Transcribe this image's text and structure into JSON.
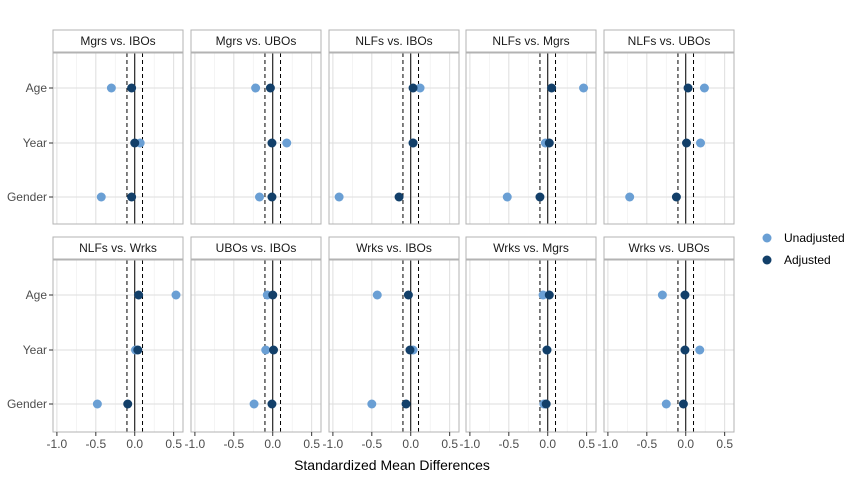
{
  "chart_data": {
    "type": "scatter",
    "xlabel": "Standardized Mean Differences",
    "ylabel": "",
    "xlim": [
      -1.05,
      0.62
    ],
    "x_ticks": [
      -1.0,
      -0.5,
      0.0,
      0.5
    ],
    "x_tick_labels": [
      "-1.0",
      "-0.5",
      "0.0",
      "0.5"
    ],
    "categories": [
      "Age",
      "Year",
      "Gender"
    ],
    "reference_lines": {
      "solid": 0,
      "dashed": [
        -0.1,
        0.1
      ]
    },
    "grid": true,
    "legend_position": "right",
    "colors": {
      "Unadjusted": "#6a9fd4",
      "Adjusted": "#123f69"
    },
    "legend": [
      "Unadjusted",
      "Adjusted"
    ],
    "panels": [
      {
        "title": "Mgrs vs. IBOs",
        "series": [
          {
            "name": "Unadjusted",
            "values": {
              "Age": -0.3,
              "Year": 0.07,
              "Gender": -0.43
            }
          },
          {
            "name": "Adjusted",
            "values": {
              "Age": -0.04,
              "Year": 0.0,
              "Gender": -0.04
            }
          }
        ]
      },
      {
        "title": "Mgrs vs. UBOs",
        "series": [
          {
            "name": "Unadjusted",
            "values": {
              "Age": -0.22,
              "Year": 0.18,
              "Gender": -0.17
            }
          },
          {
            "name": "Adjusted",
            "values": {
              "Age": -0.03,
              "Year": -0.01,
              "Gender": -0.01
            }
          }
        ]
      },
      {
        "title": "NLFs vs. IBOs",
        "series": [
          {
            "name": "Unadjusted",
            "values": {
              "Age": 0.12,
              "Year": 0.03,
              "Gender": -0.92
            }
          },
          {
            "name": "Adjusted",
            "values": {
              "Age": 0.03,
              "Year": 0.03,
              "Gender": -0.15
            }
          }
        ]
      },
      {
        "title": "NLFs vs. Mgrs",
        "series": [
          {
            "name": "Unadjusted",
            "values": {
              "Age": 0.46,
              "Year": -0.03,
              "Gender": -0.52
            }
          },
          {
            "name": "Adjusted",
            "values": {
              "Age": 0.05,
              "Year": 0.02,
              "Gender": -0.1
            }
          }
        ]
      },
      {
        "title": "NLFs vs. UBOs",
        "series": [
          {
            "name": "Unadjusted",
            "values": {
              "Age": 0.24,
              "Year": 0.19,
              "Gender": -0.72
            }
          },
          {
            "name": "Adjusted",
            "values": {
              "Age": 0.03,
              "Year": 0.01,
              "Gender": -0.12
            }
          }
        ]
      },
      {
        "title": "NLFs vs. Wrks",
        "series": [
          {
            "name": "Unadjusted",
            "values": {
              "Age": 0.53,
              "Year": 0.01,
              "Gender": -0.48
            }
          },
          {
            "name": "Adjusted",
            "values": {
              "Age": 0.05,
              "Year": 0.04,
              "Gender": -0.09
            }
          }
        ]
      },
      {
        "title": "UBOs vs. IBOs",
        "series": [
          {
            "name": "Unadjusted",
            "values": {
              "Age": -0.07,
              "Year": -0.09,
              "Gender": -0.24
            }
          },
          {
            "name": "Adjusted",
            "values": {
              "Age": 0.0,
              "Year": 0.01,
              "Gender": -0.01
            }
          }
        ]
      },
      {
        "title": "Wrks vs. IBOs",
        "series": [
          {
            "name": "Unadjusted",
            "values": {
              "Age": -0.43,
              "Year": 0.03,
              "Gender": -0.5
            }
          },
          {
            "name": "Adjusted",
            "values": {
              "Age": -0.03,
              "Year": -0.01,
              "Gender": -0.06
            }
          }
        ]
      },
      {
        "title": "Wrks vs. Mgrs",
        "series": [
          {
            "name": "Unadjusted",
            "values": {
              "Age": -0.06,
              "Year": -0.01,
              "Gender": -0.05
            }
          },
          {
            "name": "Adjusted",
            "values": {
              "Age": 0.02,
              "Year": -0.01,
              "Gender": -0.02
            }
          }
        ]
      },
      {
        "title": "Wrks vs. UBOs",
        "series": [
          {
            "name": "Unadjusted",
            "values": {
              "Age": -0.3,
              "Year": 0.18,
              "Gender": -0.25
            }
          },
          {
            "name": "Adjusted",
            "values": {
              "Age": -0.01,
              "Year": -0.01,
              "Gender": -0.03
            }
          }
        ]
      }
    ]
  }
}
